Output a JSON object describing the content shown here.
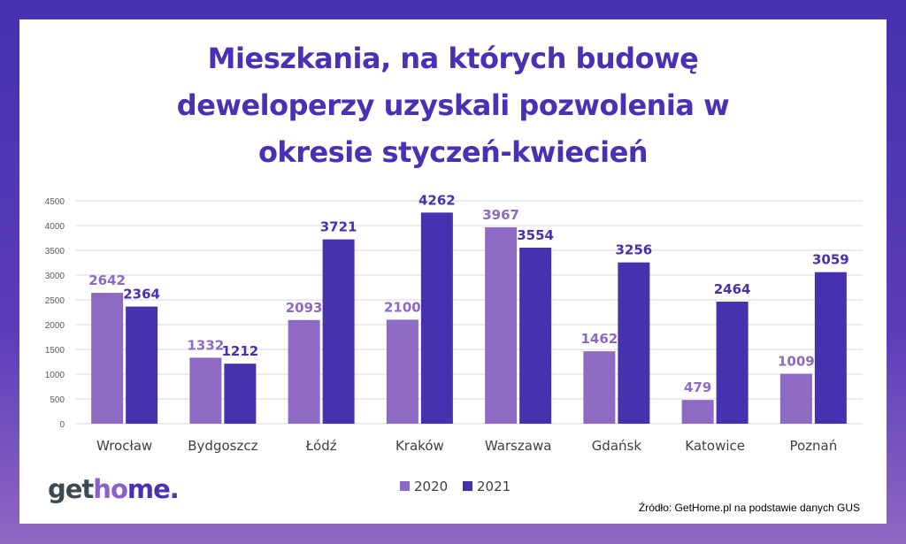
{
  "title_lines": [
    "Mieszkania, na których budowę",
    "deweloperzy uzyskali pozwolenia w",
    "okresie styczeń-kwiecień"
  ],
  "logo": {
    "part1": "get",
    "part2": "ho",
    "part3": "me."
  },
  "source": "Źródło: GetHome.pl na podstawie danych GUS",
  "colors": {
    "series_2020": "#8d6bc4",
    "series_2021": "#4632b0",
    "title": "#4a30b4"
  },
  "chart_data": {
    "type": "bar",
    "title": "Mieszkania, na których budowę deweloperzy uzyskali pozwolenia w okresie styczeń-kwiecień",
    "categories": [
      "Wrocław",
      "Bydgoszcz",
      "Łódź",
      "Kraków",
      "Warszawa",
      "Gdańsk",
      "Katowice",
      "Poznań"
    ],
    "series": [
      {
        "name": "2020",
        "values": [
          2642,
          1332,
          2093,
          2100,
          3967,
          1462,
          479,
          1009
        ]
      },
      {
        "name": "2021",
        "values": [
          2364,
          1212,
          3721,
          4262,
          3554,
          3256,
          2464,
          3059
        ]
      }
    ],
    "ylim": [
      0,
      4500
    ],
    "yticks": [
      0,
      500,
      1000,
      1500,
      2000,
      2500,
      3000,
      3500,
      4000,
      4500
    ],
    "grid": true,
    "legend": "bottom",
    "data_labels": true
  }
}
